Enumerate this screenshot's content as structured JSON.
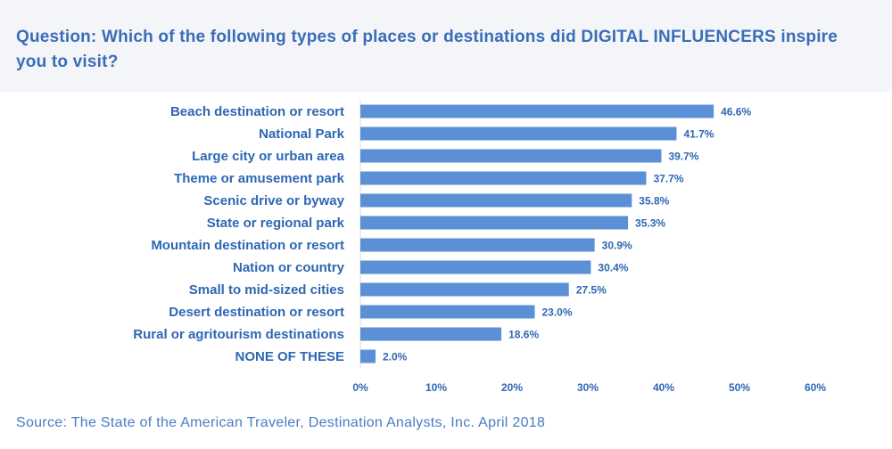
{
  "header": {
    "title": "Question: Which of the following types of places or destinations did DIGITAL INFLUENCERS inspire you to visit?"
  },
  "footer": {
    "source": "Source: The State of the American Traveler, Destination Analysts, Inc. April 2018"
  },
  "colors": {
    "bar": "#5b8fd6",
    "text": "#2e67b3",
    "header_bg": "#f4f5f9"
  },
  "chart_data": {
    "type": "bar",
    "orientation": "horizontal",
    "categories": [
      "Beach destination or resort",
      "National Park",
      "Large city or urban area",
      "Theme or amusement park",
      "Scenic drive or byway",
      "State or regional park",
      "Mountain destination or resort",
      "Nation or country",
      "Small to mid-sized cities",
      "Desert destination or resort",
      "Rural or agritourism destinations",
      "NONE OF THESE"
    ],
    "values": [
      46.6,
      41.7,
      39.7,
      37.7,
      35.8,
      35.3,
      30.9,
      30.4,
      27.5,
      23.0,
      18.6,
      2.0
    ],
    "value_labels": [
      "46.6%",
      "41.7%",
      "39.7%",
      "37.7%",
      "35.8%",
      "35.3%",
      "30.9%",
      "30.4%",
      "27.5%",
      "23.0%",
      "18.6%",
      "2.0%"
    ],
    "xlim": [
      0,
      60
    ],
    "x_ticks": [
      0,
      10,
      20,
      30,
      40,
      50,
      60
    ],
    "x_tick_labels": [
      "0%",
      "10%",
      "20%",
      "30%",
      "40%",
      "50%",
      "60%"
    ],
    "grid": false,
    "legend": "none"
  }
}
